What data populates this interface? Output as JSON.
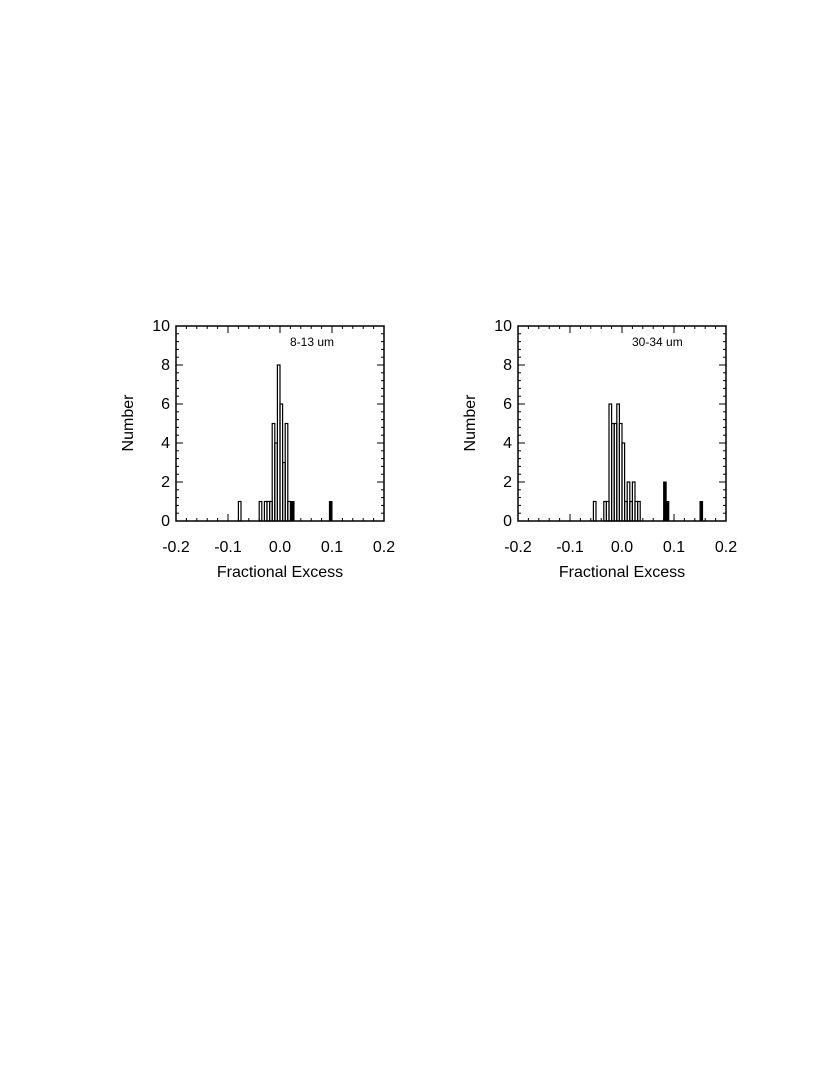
{
  "chart_data": [
    {
      "type": "histogram",
      "title": "",
      "annotation": "8-13 um",
      "xlabel": "Fractional Excess",
      "ylabel": "Number",
      "xlim": [
        -0.2,
        0.2
      ],
      "ylim": [
        0,
        10
      ],
      "xticks": [
        "-0.2",
        "-0.1",
        "0.0",
        "0.1",
        "0.2"
      ],
      "yticks": [
        "0",
        "2",
        "4",
        "6",
        "8",
        "10"
      ],
      "bin_width": 0.005,
      "outline_series": {
        "bins": [
          {
            "x0": -0.08,
            "x1": -0.075,
            "count": 1
          },
          {
            "x0": -0.04,
            "x1": -0.035,
            "count": 1
          },
          {
            "x0": -0.035,
            "x1": -0.03,
            "count": 0
          },
          {
            "x0": -0.03,
            "x1": -0.025,
            "count": 1
          },
          {
            "x0": -0.025,
            "x1": -0.02,
            "count": 1
          },
          {
            "x0": -0.02,
            "x1": -0.015,
            "count": 1
          },
          {
            "x0": -0.015,
            "x1": -0.01,
            "count": 5
          },
          {
            "x0": -0.01,
            "x1": -0.005,
            "count": 4
          },
          {
            "x0": -0.005,
            "x1": 0.0,
            "count": 8
          },
          {
            "x0": 0.0,
            "x1": 0.005,
            "count": 6
          },
          {
            "x0": 0.005,
            "x1": 0.01,
            "count": 3
          },
          {
            "x0": 0.01,
            "x1": 0.015,
            "count": 5
          },
          {
            "x0": 0.015,
            "x1": 0.02,
            "count": 1
          }
        ]
      },
      "filled_series": {
        "bins": [
          {
            "x0": 0.022,
            "x1": 0.027,
            "count": 1
          },
          {
            "x0": 0.095,
            "x1": 0.1,
            "count": 1
          }
        ]
      }
    },
    {
      "type": "histogram",
      "title": "",
      "annotation": "30-34 um",
      "xlabel": "Fractional Excess",
      "ylabel": "Number",
      "xlim": [
        -0.2,
        0.2
      ],
      "ylim": [
        0,
        10
      ],
      "xticks": [
        "-0.2",
        "-0.1",
        "0.0",
        "0.1",
        "0.2"
      ],
      "yticks": [
        "0",
        "2",
        "4",
        "6",
        "8",
        "10"
      ],
      "bin_width": 0.005,
      "outline_series": {
        "bins": [
          {
            "x0": -0.055,
            "x1": -0.05,
            "count": 1
          },
          {
            "x0": -0.04,
            "x1": -0.035,
            "count": 0
          },
          {
            "x0": -0.035,
            "x1": -0.03,
            "count": 1
          },
          {
            "x0": -0.03,
            "x1": -0.025,
            "count": 1
          },
          {
            "x0": -0.025,
            "x1": -0.02,
            "count": 6
          },
          {
            "x0": -0.02,
            "x1": -0.015,
            "count": 5
          },
          {
            "x0": -0.015,
            "x1": -0.01,
            "count": 5
          },
          {
            "x0": -0.01,
            "x1": -0.005,
            "count": 6
          },
          {
            "x0": -0.005,
            "x1": 0.0,
            "count": 5
          },
          {
            "x0": 0.0,
            "x1": 0.005,
            "count": 4
          },
          {
            "x0": 0.005,
            "x1": 0.01,
            "count": 1
          },
          {
            "x0": 0.01,
            "x1": 0.015,
            "count": 2
          },
          {
            "x0": 0.015,
            "x1": 0.02,
            "count": 1
          },
          {
            "x0": 0.02,
            "x1": 0.025,
            "count": 2
          },
          {
            "x0": 0.025,
            "x1": 0.03,
            "count": 1
          },
          {
            "x0": 0.03,
            "x1": 0.035,
            "count": 1
          }
        ]
      },
      "filled_series": {
        "bins": [
          {
            "x0": 0.08,
            "x1": 0.085,
            "count": 2
          },
          {
            "x0": 0.085,
            "x1": 0.09,
            "count": 1
          },
          {
            "x0": 0.15,
            "x1": 0.155,
            "count": 1
          }
        ]
      }
    }
  ]
}
